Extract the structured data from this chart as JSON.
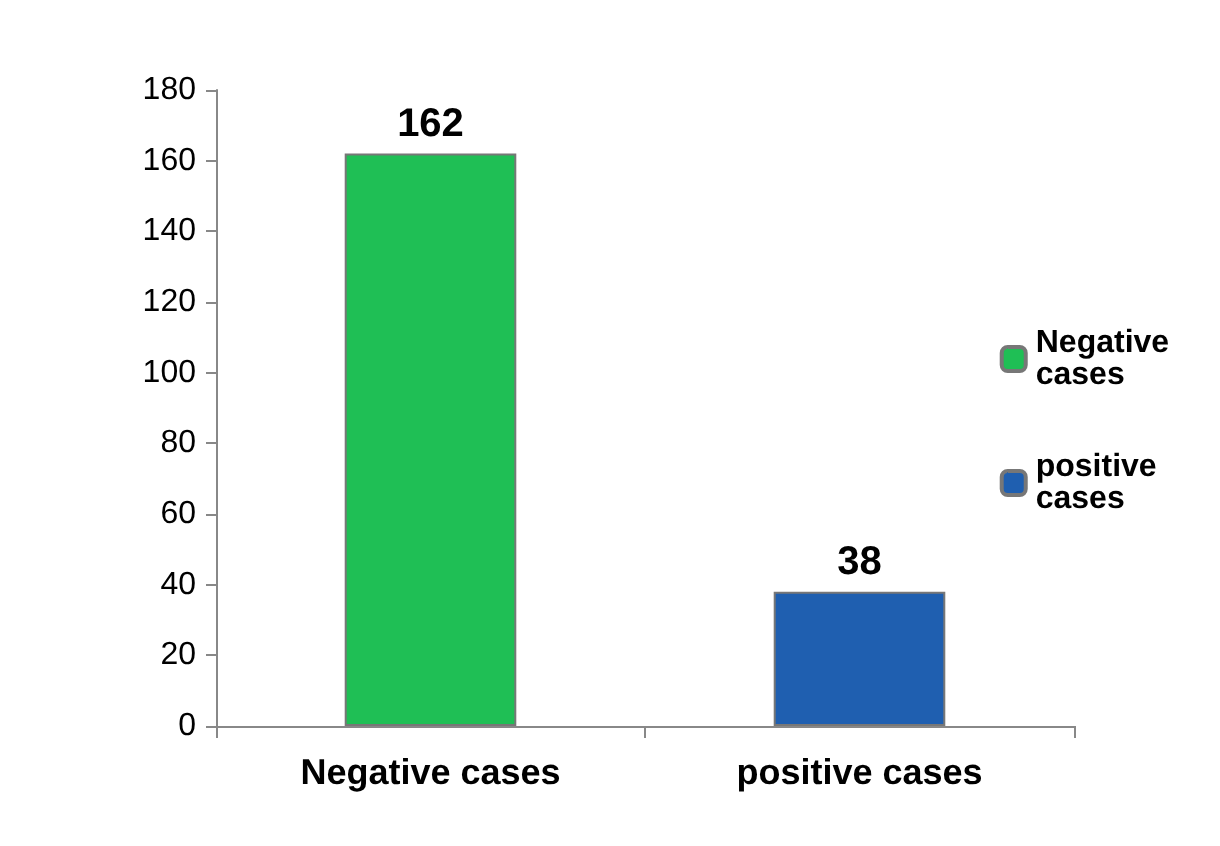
{
  "chart_data": {
    "type": "bar",
    "categories": [
      "Negative cases",
      "positive cases"
    ],
    "series": [
      {
        "name": "Negative cases",
        "color": "#1fbf55",
        "values": [
          162,
          null
        ]
      },
      {
        "name": "positive cases",
        "color": "#1f5fb0",
        "values": [
          null,
          38
        ]
      }
    ],
    "ylim": [
      0,
      180
    ],
    "yticks": [
      0,
      20,
      40,
      60,
      80,
      100,
      120,
      140,
      160,
      180
    ],
    "grid": false,
    "legend": "right",
    "data_labels": true
  }
}
